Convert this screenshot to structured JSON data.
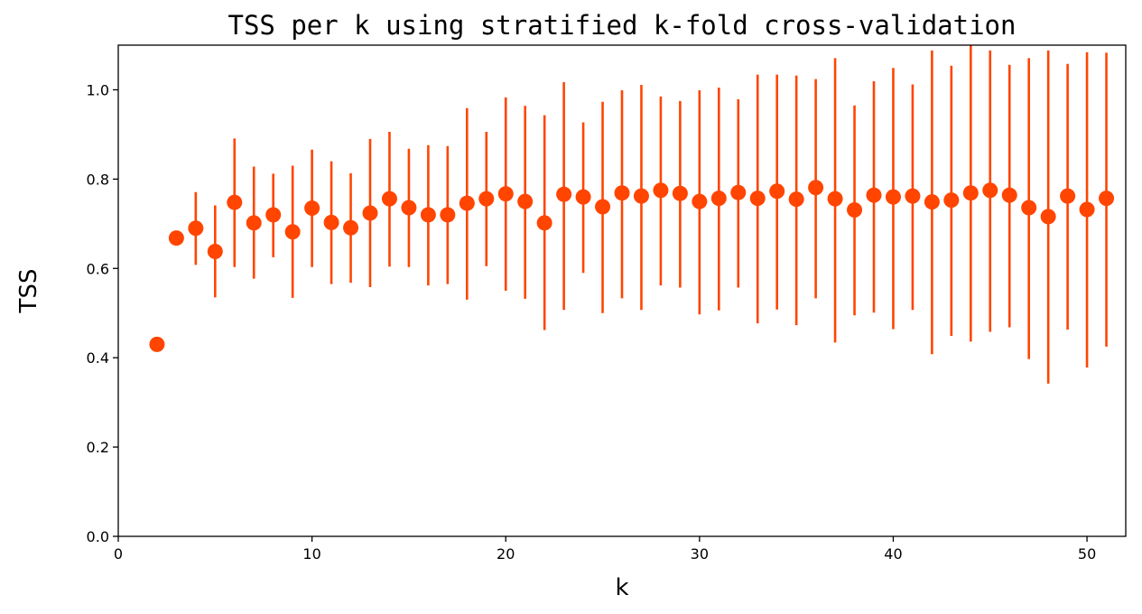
{
  "chart_data": {
    "type": "scatter",
    "title": "TSS per k using stratified k-fold cross-validation",
    "xlabel": "k",
    "ylabel": "TSS",
    "xlim": [
      0,
      52
    ],
    "ylim": [
      0,
      1.1
    ],
    "xticks": [
      0,
      10,
      20,
      30,
      40,
      50
    ],
    "xtick_labels": [
      "0",
      "10",
      "20",
      "30",
      "40",
      "50"
    ],
    "yticks": [
      0,
      0.2,
      0.4,
      0.6,
      0.8,
      1.0
    ],
    "ytick_labels": [
      "0.0",
      "0.2",
      "0.4",
      "0.6",
      "0.8",
      "1.0"
    ],
    "grid": false,
    "color": "#ff4500",
    "series": [
      {
        "x": [
          2,
          3,
          4,
          5,
          6,
          7,
          8,
          9,
          10,
          11,
          12,
          13,
          14,
          15,
          16,
          17,
          18,
          19,
          20,
          21,
          22,
          23,
          24,
          25,
          26,
          27,
          28,
          29,
          30,
          31,
          32,
          33,
          34,
          35,
          36,
          37,
          38,
          39,
          40,
          41,
          42,
          43,
          44,
          45,
          46,
          47,
          48,
          49,
          50,
          51
        ],
        "y": [
          0.43,
          0.668,
          0.69,
          0.638,
          0.748,
          0.702,
          0.72,
          0.682,
          0.735,
          0.703,
          0.691,
          0.724,
          0.756,
          0.736,
          0.72,
          0.72,
          0.746,
          0.756,
          0.767,
          0.75,
          0.702,
          0.766,
          0.76,
          0.738,
          0.769,
          0.762,
          0.775,
          0.768,
          0.75,
          0.757,
          0.77,
          0.757,
          0.773,
          0.755,
          0.781,
          0.756,
          0.731,
          0.764,
          0.76,
          0.762,
          0.749,
          0.753,
          0.769,
          0.775,
          0.764,
          0.736,
          0.716,
          0.762,
          0.732,
          0.757
        ],
        "err_low": [
          null,
          null,
          0.608,
          0.535,
          0.603,
          0.577,
          0.625,
          0.534,
          0.603,
          0.565,
          0.568,
          0.558,
          0.604,
          0.603,
          0.562,
          0.565,
          0.53,
          0.605,
          0.55,
          0.532,
          0.462,
          0.507,
          0.59,
          0.5,
          0.533,
          0.507,
          0.562,
          0.557,
          0.497,
          0.506,
          0.557,
          0.477,
          0.508,
          0.473,
          0.533,
          0.434,
          0.495,
          0.501,
          0.464,
          0.507,
          0.408,
          0.449,
          0.436,
          0.458,
          0.468,
          0.397,
          0.342,
          0.463,
          0.378,
          0.425
        ],
        "err_high": [
          null,
          null,
          0.771,
          0.741,
          0.891,
          0.828,
          0.812,
          0.83,
          0.866,
          0.84,
          0.813,
          0.89,
          0.906,
          0.868,
          0.876,
          0.874,
          0.959,
          0.906,
          0.983,
          0.964,
          0.943,
          1.017,
          0.927,
          0.973,
          0.999,
          1.011,
          0.985,
          0.975,
          0.999,
          1.005,
          0.979,
          1.034,
          1.034,
          1.032,
          1.024,
          1.071,
          0.965,
          1.019,
          1.049,
          1.012,
          1.088,
          1.054,
          1.1,
          1.088,
          1.056,
          1.071,
          1.088,
          1.058,
          1.084,
          1.083
        ]
      }
    ]
  }
}
